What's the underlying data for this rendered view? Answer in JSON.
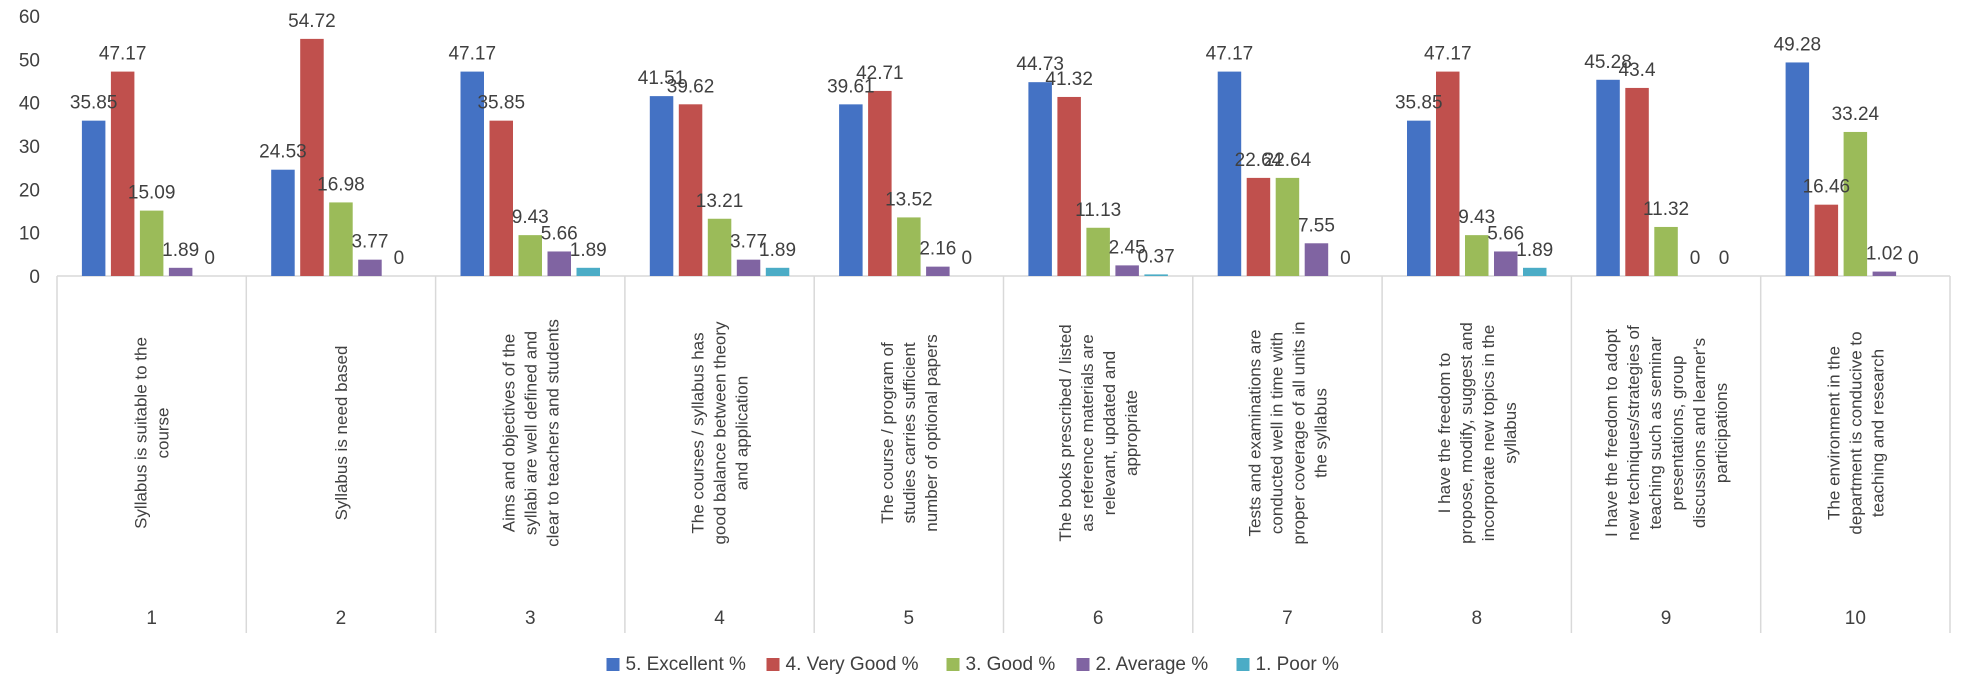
{
  "chart_data": {
    "type": "bar",
    "title": "",
    "xlabel": "",
    "ylabel": "",
    "ylim": [
      0,
      60
    ],
    "yticks": [
      0,
      10,
      20,
      30,
      40,
      50,
      60
    ],
    "grid": false,
    "legend_position": "bottom",
    "categories": [
      "1",
      "2",
      "3",
      "4",
      "5",
      "6",
      "7",
      "8",
      "9",
      "10"
    ],
    "category_labels": [
      [
        "Syllabus is suitable to the",
        "course"
      ],
      [
        "Syllabus is need based"
      ],
      [
        "Aims and objectives of the",
        "syllabi are well defined and",
        "clear to teachers and students"
      ],
      [
        "The courses / syllabus has",
        "good balance between theory",
        "and application"
      ],
      [
        "The course / program of",
        "studies carries sufficient",
        "number of optional papers"
      ],
      [
        "The books prescribed / listed",
        "as reference materials are",
        "relevant, updated and",
        "appropriate"
      ],
      [
        "Tests and examinations are",
        "conducted well in time with",
        "proper coverage of all units in",
        "the syllabus"
      ],
      [
        "I have the freedom to",
        "propose, modify, suggest and",
        "incorporate new topics in the",
        "syllabus"
      ],
      [
        "I have the freedom to adopt",
        "new techniques/strategies of",
        "teaching such as seminar",
        "presentations, group",
        "discussions and learner's",
        "participations"
      ],
      [
        "The environment in the",
        "department is conducive to",
        "teaching and research"
      ]
    ],
    "series": [
      {
        "name": "5. Excellent %",
        "color": "#4472C4",
        "values": [
          35.85,
          24.53,
          47.17,
          41.51,
          39.61,
          44.73,
          47.17,
          35.85,
          45.28,
          49.28
        ]
      },
      {
        "name": "4. Very Good %",
        "color": "#C0504D",
        "values": [
          47.17,
          54.72,
          35.85,
          39.62,
          42.71,
          41.32,
          22.64,
          47.17,
          43.4,
          16.46
        ]
      },
      {
        "name": "3. Good %",
        "color": "#9BBB59",
        "values": [
          15.09,
          16.98,
          9.43,
          13.21,
          13.52,
          11.13,
          22.64,
          9.43,
          11.32,
          33.24
        ]
      },
      {
        "name": "2. Average %",
        "color": "#8064A2",
        "values": [
          1.89,
          3.77,
          5.66,
          3.77,
          2.16,
          2.45,
          7.55,
          5.66,
          0,
          1.02
        ]
      },
      {
        "name": "1. Poor %",
        "color": "#4BACC6",
        "values": [
          null,
          null,
          1.89,
          1.89,
          null,
          0.37,
          null,
          1.89,
          0,
          null
        ]
      }
    ],
    "value_labels": [
      [
        "35.85",
        "24.53",
        "47.17",
        "41.51",
        "39.61",
        "44.73",
        "47.17",
        "35.85",
        "45.28",
        "49.28"
      ],
      [
        "47.17",
        "54.72",
        "35.85",
        "39.62",
        "42.71",
        "41.32",
        "22.64",
        "47.17",
        "43.4",
        "16.46"
      ],
      [
        "15.09",
        "16.98",
        "9.43",
        "13.21",
        "13.52",
        "11.13",
        "22.64",
        "9.43",
        "11.32",
        "33.24"
      ],
      [
        "1.89",
        "3.77",
        "5.66",
        "3.77",
        "2.16",
        "2.45",
        "7.55",
        "5.66",
        "0",
        "1.02"
      ],
      [
        "0",
        "0",
        "1.89",
        "1.89",
        "0",
        "0.37",
        "0",
        "1.89",
        "0",
        "0"
      ]
    ]
  }
}
